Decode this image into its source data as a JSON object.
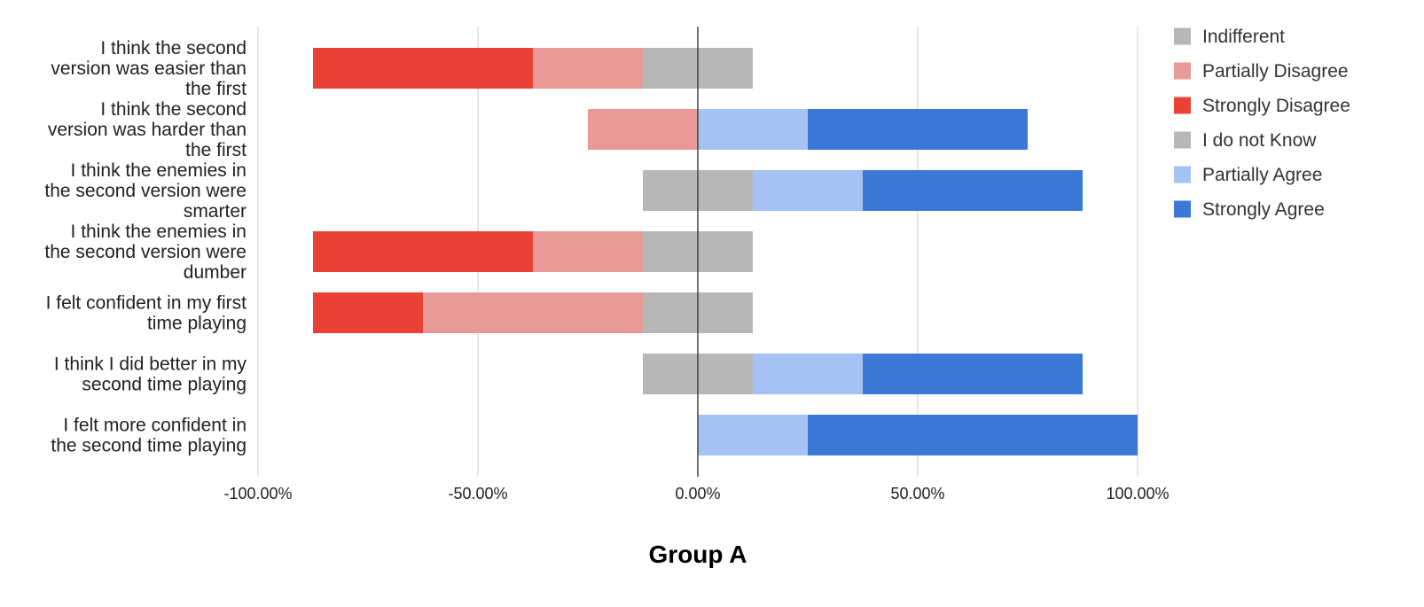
{
  "chart_data": {
    "type": "bar",
    "orientation": "horizontal",
    "stacked": "diverging",
    "xlabel": "Group A",
    "xlim": [
      -100,
      100
    ],
    "x_ticks": [
      -100,
      -50,
      0,
      50,
      100
    ],
    "x_tick_labels": [
      "-100.00%",
      "-50.00%",
      "0.00%",
      "50.00%",
      "100.00%"
    ],
    "grid": true,
    "legend_position": "right",
    "categories": [
      "I think the second version was easier than the first",
      "I think the second version was harder than the first",
      "I think the enemies in the second version were smarter",
      "I think the enemies in the second version were dumber",
      "I felt confident in my first time playing",
      "I think I did better in my second time playing",
      "I felt more confident in the second time playing"
    ],
    "category_lines": [
      [
        "I think the second",
        "version was easier than",
        "the first"
      ],
      [
        "I think the second",
        "version was harder than",
        "the first"
      ],
      [
        "I think the enemies in",
        "the second version were",
        "smarter"
      ],
      [
        "I think the enemies in",
        "the second version were",
        "dumber"
      ],
      [
        "I felt confident in my first",
        "time playing"
      ],
      [
        "I think I did better in my",
        "second time playing"
      ],
      [
        "I felt more confident in",
        "the second time playing"
      ]
    ],
    "legend": [
      {
        "name": "Indifferent",
        "color": "#b7b7b7"
      },
      {
        "name": "Partially Disagree",
        "color": "#ea9999"
      },
      {
        "name": "Strongly Disagree",
        "color": "#ea4335"
      },
      {
        "name": "I do not Know",
        "color": "#b7b7b7"
      },
      {
        "name": "Partially Agree",
        "color": "#a4c2f4"
      },
      {
        "name": "Strongly Agree",
        "color": "#3c78d8"
      }
    ],
    "series": [
      {
        "name": "Strongly Disagree",
        "color": "#ea4335",
        "side": "negative",
        "values": [
          50,
          0,
          0,
          50,
          25,
          0,
          0
        ]
      },
      {
        "name": "Partially Disagree",
        "color": "#ea9999",
        "side": "negative",
        "values": [
          25,
          25,
          0,
          25,
          50,
          0,
          0
        ]
      },
      {
        "name": "Indifferent",
        "color": "#b7b7b7",
        "side": "center",
        "values": [
          25,
          0,
          25,
          25,
          25,
          25,
          0
        ]
      },
      {
        "name": "Partially Agree",
        "color": "#a4c2f4",
        "side": "positive",
        "values": [
          0,
          25,
          25,
          0,
          0,
          25,
          25
        ]
      },
      {
        "name": "Strongly Agree",
        "color": "#3c78d8",
        "side": "positive",
        "values": [
          0,
          50,
          50,
          0,
          0,
          50,
          75
        ]
      }
    ]
  }
}
